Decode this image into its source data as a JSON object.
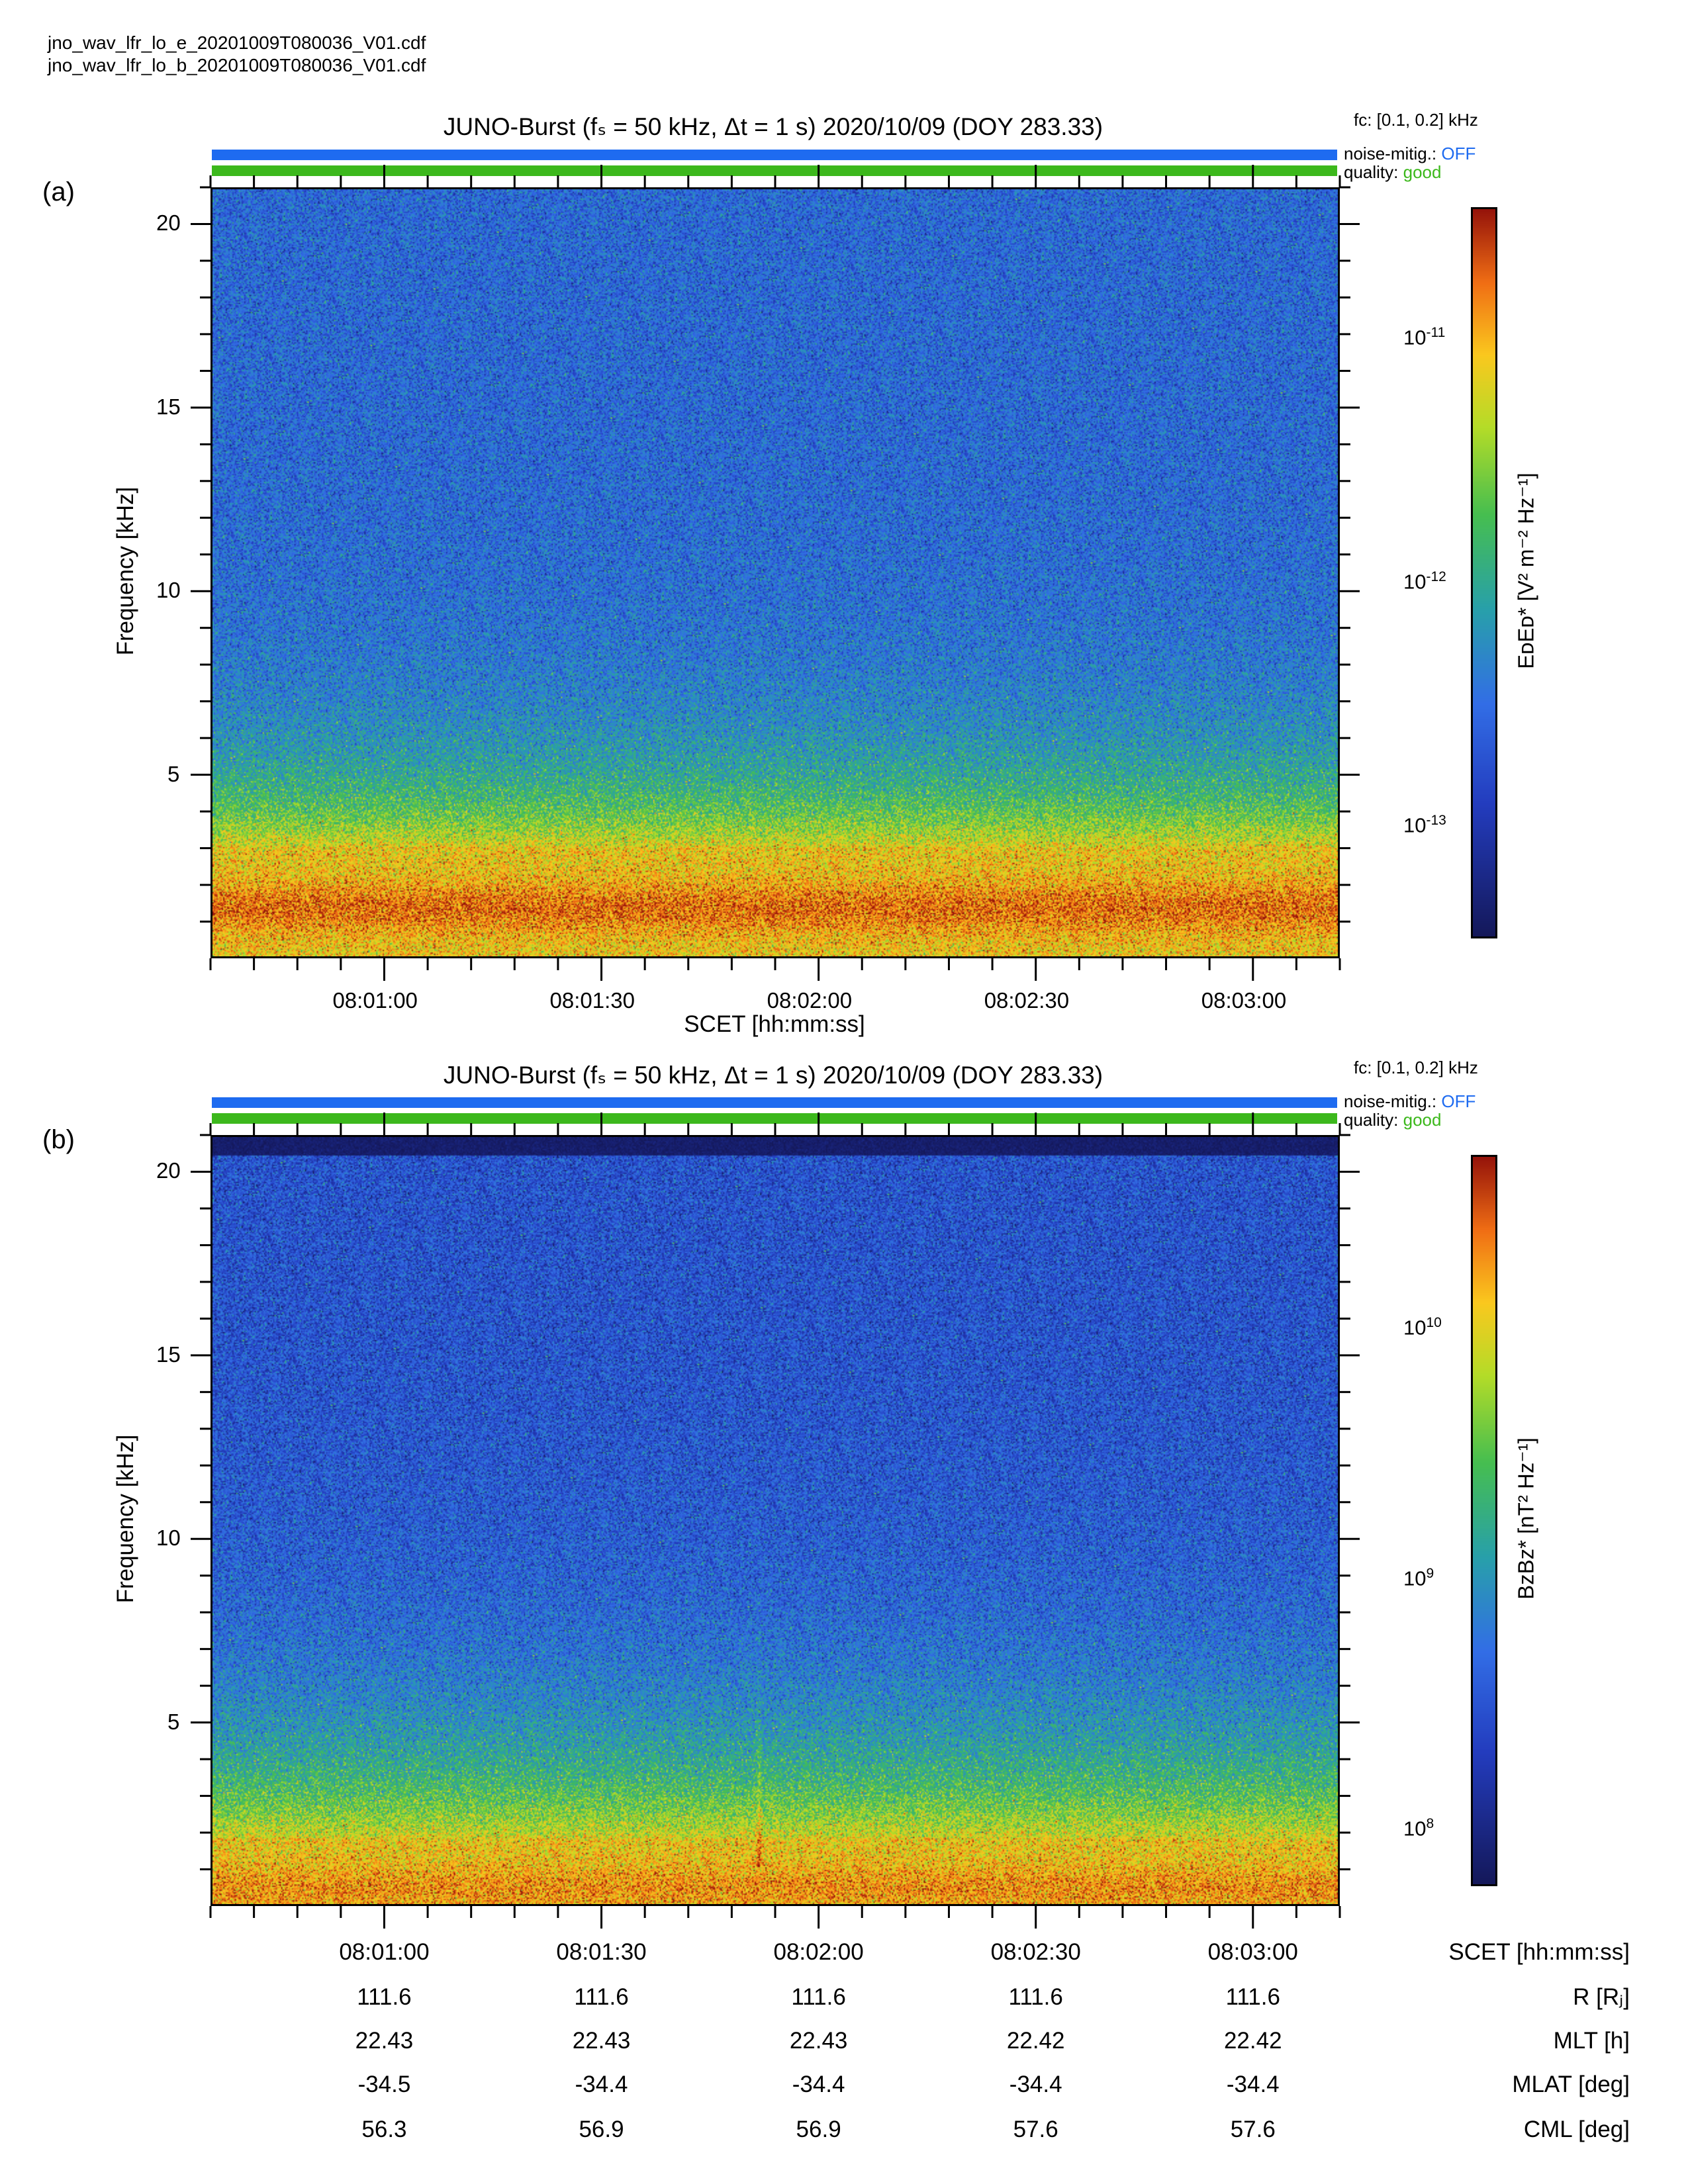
{
  "files": [
    "jno_wav_lfr_lo_e_20201009T080036_V01.cdf",
    "jno_wav_lfr_lo_b_20201009T080036_V01.cdf"
  ],
  "colors": {
    "noise_bar": "#1e6bf0",
    "quality_bar": "#3cb81c"
  },
  "panels": [
    {
      "letter": "(a)",
      "title": "JUNO-Burst (fₛ = 50 kHz, Δt = 1 s)  2020/10/09 (DOY 283.33)",
      "fc": "fᴄ: [0.1, 0.2] kHz",
      "noise_label": "noise-mitig.:",
      "noise_value": "OFF",
      "quality_label": "quality:",
      "quality_value": "good",
      "ylabel": "Frequency [kHz]",
      "xlabel": "SCET [hh:mm:ss]",
      "colorbar_title": "EᴅEᴅ* [V² m⁻² Hz⁻¹]",
      "colorbar_ticks": [
        {
          "base": "10",
          "exp": "-11",
          "value": 1e-11
        },
        {
          "base": "10",
          "exp": "-12",
          "value": 1e-12
        },
        {
          "base": "10",
          "exp": "-13",
          "value": 1e-13
        }
      ]
    },
    {
      "letter": "(b)",
      "title": "JUNO-Burst (fₛ = 50 kHz, Δt = 1 s)  2020/10/09 (DOY 283.33)",
      "fc": "fᴄ: [0.1, 0.2] kHz",
      "noise_label": "noise-mitig.:",
      "noise_value": "OFF",
      "quality_label": "quality:",
      "quality_value": "good",
      "ylabel": "Frequency [kHz]",
      "colorbar_title": "BᴢBᴢ* [nT² Hz⁻¹]",
      "colorbar_ticks": [
        {
          "base": "10",
          "exp": "10",
          "value": 10000000000.0
        },
        {
          "base": "10",
          "exp": "9",
          "value": 1000000000.0
        },
        {
          "base": "10",
          "exp": "8",
          "value": 100000000.0
        }
      ]
    }
  ],
  "ephemeris": {
    "labels": [
      "SCET [hh:mm:ss]",
      "R [Rⱼ]",
      "MLT [h]",
      "MLAT [deg]",
      "CML [deg]"
    ],
    "rows": [
      [
        "08:01:00",
        "08:01:30",
        "08:02:00",
        "08:02:30",
        "08:03:00"
      ],
      [
        "111.6",
        "111.6",
        "111.6",
        "111.6",
        "111.6"
      ],
      [
        "22.43",
        "22.43",
        "22.43",
        "22.42",
        "22.42"
      ],
      [
        "-34.5",
        "-34.4",
        "-34.4",
        "-34.4",
        "-34.4"
      ],
      [
        "56.3",
        "56.9",
        "56.9",
        "57.6",
        "57.6"
      ]
    ]
  },
  "chart_data": [
    {
      "type": "heatmap",
      "panel": "(a)",
      "title": "JUNO-Burst (fₛ = 50 kHz, Δt = 1 s)  2020/10/09 (DOY 283.33)",
      "xlabel": "SCET [hh:mm:ss]",
      "ylabel": "Frequency [kHz]",
      "x_ticks": [
        "08:01:00",
        "08:01:30",
        "08:02:00",
        "08:02:30",
        "08:03:00"
      ],
      "x_range": [
        "08:00:36",
        "08:03:12"
      ],
      "y_ticks": [
        5,
        10,
        15,
        20
      ],
      "ylim": [
        0,
        21
      ],
      "colorbar_label": "EᴅEᴅ* [V² m⁻² Hz⁻¹]",
      "colorbar_scale": "log",
      "colorbar_range": [
        3.5e-14,
        3.5e-11
      ],
      "colormap": "blue-green-yellow-red",
      "grid": false,
      "features": "intense power below ~3 kHz (peak near 1-2 kHz), decreasing with frequency"
    },
    {
      "type": "heatmap",
      "panel": "(b)",
      "title": "JUNO-Burst (fₛ = 50 kHz, Δt = 1 s)  2020/10/09 (DOY 283.33)",
      "xlabel": "SCET [hh:mm:ss]",
      "ylabel": "Frequency [kHz]",
      "x_ticks": [
        "08:01:00",
        "08:01:30",
        "08:02:00",
        "08:02:30",
        "08:03:00"
      ],
      "x_range": [
        "08:00:36",
        "08:03:12"
      ],
      "y_ticks": [
        5,
        10,
        15,
        20
      ],
      "ylim": [
        0,
        21
      ],
      "colorbar_label": "BᴢBᴢ* [nT² Hz⁻¹]",
      "colorbar_scale": "log",
      "colorbar_range": [
        60000000.0,
        50000000000.0
      ],
      "colormap": "blue-green-yellow-red",
      "grid": false,
      "features": "intense power below ~2 kHz, vertical burst near 08:01:55 up to ~8 kHz, no data above ~20.5 kHz"
    }
  ]
}
